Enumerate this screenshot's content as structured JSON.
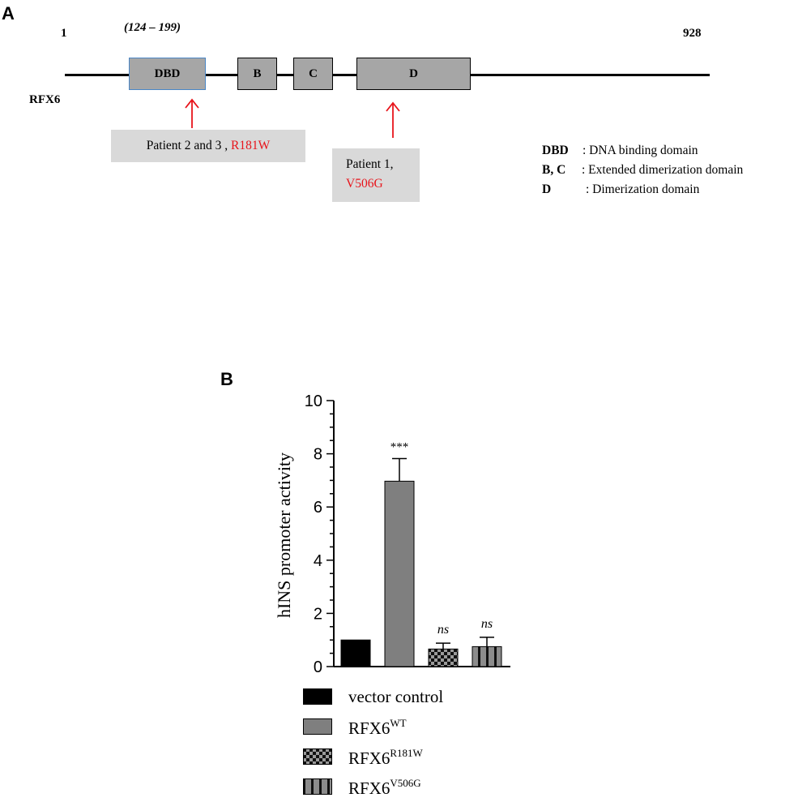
{
  "panel_a": {
    "label": "A",
    "start_pos": "1",
    "end_pos": "928",
    "dbd_range": "(124 – 199)",
    "protein": "RFX6",
    "domains": [
      {
        "name": "DBD"
      },
      {
        "name": "B"
      },
      {
        "name": "C"
      },
      {
        "name": "D"
      }
    ],
    "callouts": [
      {
        "patient": "Patient 2 and 3 ,",
        "mutation": "R181W"
      },
      {
        "patient": "Patient 1,",
        "mutation": "V506G"
      }
    ],
    "legend": [
      {
        "abbr": "DBD",
        "desc": ": DNA binding domain"
      },
      {
        "abbr": "B, C",
        "desc": ": Extended dimerization domain"
      },
      {
        "abbr": "D",
        "desc": ": Dimerization domain"
      }
    ],
    "colors": {
      "domain_fill": "#a6a6a6",
      "dbd_border": "#4a86c5",
      "mutation_red": "#e8141b",
      "callout_bg": "#d9d9d9"
    }
  },
  "panel_b": {
    "label": "B",
    "legend": [
      {
        "base": "vector control",
        "sup": "",
        "pattern": "solid-black"
      },
      {
        "base": "RFX6",
        "sup": "WT",
        "pattern": "solid-gray"
      },
      {
        "base": "RFX6",
        "sup": "R181W",
        "pattern": "checker"
      },
      {
        "base": "RFX6",
        "sup": "V506G",
        "pattern": "stripes"
      }
    ]
  },
  "chart_data": {
    "type": "bar",
    "title": "",
    "xlabel": "",
    "ylabel": "hINS promoter activity",
    "ylim": [
      0,
      10
    ],
    "yticks": [
      "0",
      "2",
      "4",
      "6",
      "8",
      "10"
    ],
    "categories": [
      "vector control",
      "RFX6WT",
      "RFX6R181W",
      "RFX6V506G"
    ],
    "values": [
      1.0,
      6.97,
      0.66,
      0.75
    ],
    "errors": [
      0,
      0.85,
      0.22,
      0.35
    ],
    "annotations": [
      "",
      "***",
      "ns",
      "ns"
    ],
    "colors": [
      "#000000",
      "#7f7f7f",
      "checker",
      "stripes"
    ],
    "grid": false,
    "legend_position": "bottom"
  }
}
